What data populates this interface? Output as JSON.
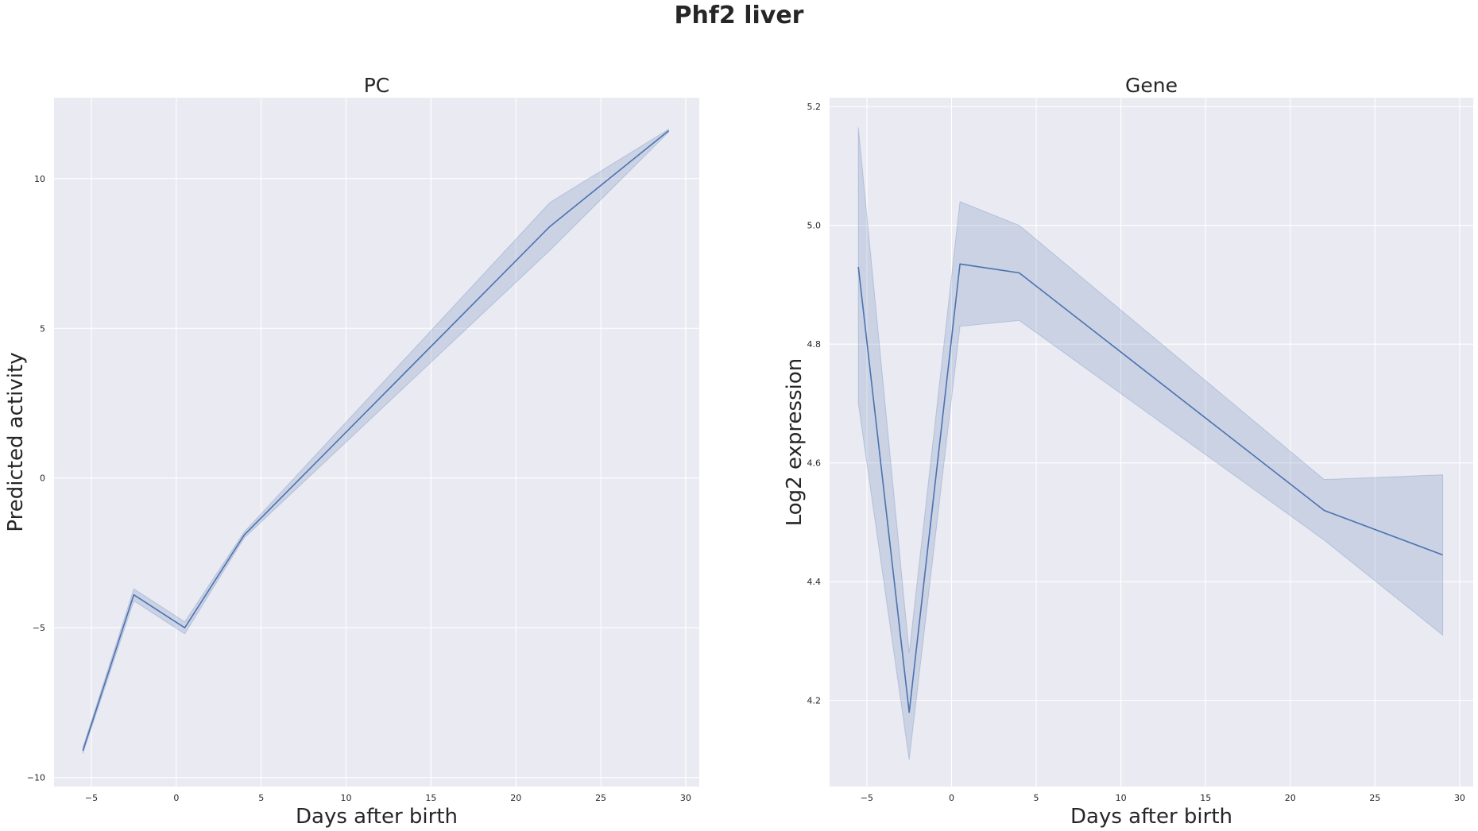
{
  "figure": {
    "suptitle": "Phf2 liver"
  },
  "colors": {
    "axes_background": "#eaeaf2",
    "grid": "#ffffff",
    "line": "#4c72b0",
    "band": "#4c72b0"
  },
  "chart_data": [
    {
      "type": "line",
      "title": "PC",
      "xlabel": "Days after birth",
      "ylabel": "Predicted activity",
      "xlim": [
        -7.2,
        30.8
      ],
      "ylim": [
        -10.3,
        12.7
      ],
      "xticks": [
        -5,
        0,
        5,
        10,
        15,
        20,
        25,
        30
      ],
      "xtick_labels": [
        "−5",
        "0",
        "5",
        "10",
        "15",
        "20",
        "25",
        "30"
      ],
      "yticks": [
        -10,
        -5,
        0,
        5,
        10
      ],
      "ytick_labels": [
        "−10",
        "−5",
        "0",
        "5",
        "10"
      ],
      "grid": true,
      "x": [
        -5.5,
        -2.5,
        0.5,
        4,
        22,
        29
      ],
      "series": [
        {
          "values": [
            -9.1,
            -3.9,
            -5.0,
            -1.9,
            8.4,
            11.6
          ],
          "ci_low": [
            -9.2,
            -4.1,
            -5.2,
            -2.0,
            7.6,
            11.55
          ],
          "ci_high": [
            -9.0,
            -3.7,
            -4.8,
            -1.8,
            9.2,
            11.65
          ]
        }
      ]
    },
    {
      "type": "line",
      "title": "Gene",
      "xlabel": "Days after birth",
      "ylabel": "Log2 expression",
      "xlim": [
        -7.2,
        30.8
      ],
      "ylim": [
        4.055,
        5.215
      ],
      "xticks": [
        -5,
        0,
        5,
        10,
        15,
        20,
        25,
        30
      ],
      "xtick_labels": [
        "−5",
        "0",
        "5",
        "10",
        "15",
        "20",
        "25",
        "30"
      ],
      "yticks": [
        4.2,
        4.4,
        4.6,
        4.8,
        5.0,
        5.2
      ],
      "ytick_labels": [
        "4.2",
        "4.4",
        "4.6",
        "4.8",
        "5.0",
        "5.2"
      ],
      "grid": true,
      "x": [
        -5.5,
        -2.5,
        0.5,
        4,
        22,
        29
      ],
      "series": [
        {
          "values": [
            4.93,
            4.18,
            4.935,
            4.92,
            4.52,
            4.445
          ],
          "ci_low": [
            4.7,
            4.1,
            4.83,
            4.84,
            4.47,
            4.31
          ],
          "ci_high": [
            5.165,
            4.28,
            5.04,
            5.0,
            4.572,
            4.58
          ]
        }
      ]
    }
  ]
}
